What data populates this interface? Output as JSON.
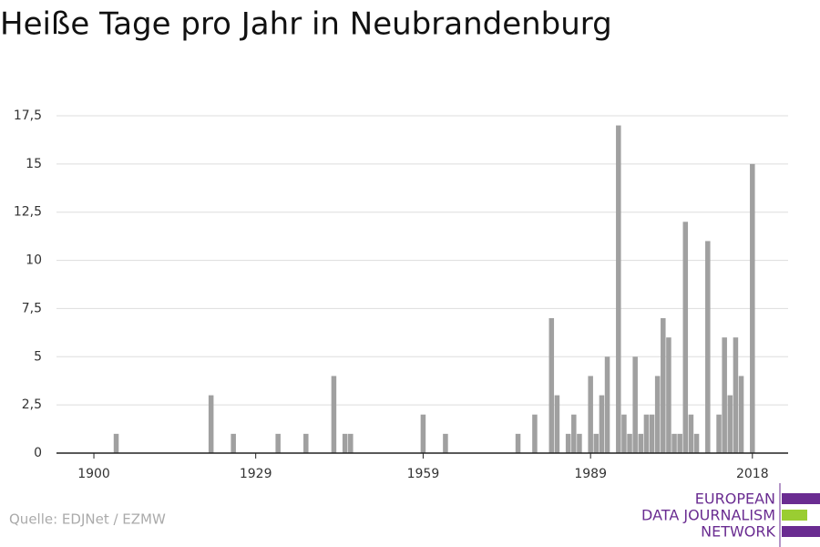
{
  "chart_data": {
    "type": "bar",
    "title": "Heiße Tage pro Jahr in Neubrandenburg",
    "x": [
      1904,
      1921,
      1925,
      1933,
      1938,
      1943,
      1945,
      1946,
      1959,
      1963,
      1976,
      1979,
      1982,
      1983,
      1985,
      1986,
      1987,
      1989,
      1990,
      1991,
      1992,
      1994,
      1995,
      1996,
      1997,
      1998,
      1999,
      2000,
      2001,
      2002,
      2003,
      2004,
      2005,
      2006,
      2007,
      2008,
      2010,
      2012,
      2013,
      2014,
      2015,
      2016,
      2018
    ],
    "values": [
      1,
      3,
      1,
      1,
      1,
      4,
      1,
      1,
      2,
      1,
      1,
      2,
      7,
      3,
      1,
      2,
      1,
      4,
      1,
      3,
      5,
      17,
      2,
      1,
      5,
      1,
      2,
      2,
      4,
      7,
      6,
      1,
      1,
      12,
      2,
      1,
      11,
      2,
      6,
      3,
      6,
      4,
      15
    ],
    "color": "#a0a0a0",
    "xlim": [
      1893.3,
      2024.4
    ],
    "xticks": [
      1900,
      1929,
      1959,
      1989,
      2018
    ],
    "ylim": [
      0,
      17.5
    ],
    "yticks": [
      0,
      {
        "value": 2.5,
        "label": "2,5"
      },
      5,
      {
        "value": 7.5,
        "label": "7,5"
      },
      10,
      {
        "value": 12.5,
        "label": "12,5"
      },
      15,
      {
        "value": 17.5,
        "label": "17,5"
      }
    ],
    "grid": true,
    "source": "Quelle: EDJNet / EZMW",
    "logo": [
      "EUROPEAN",
      "DATA JOURNALISM",
      "NETWORK"
    ]
  }
}
